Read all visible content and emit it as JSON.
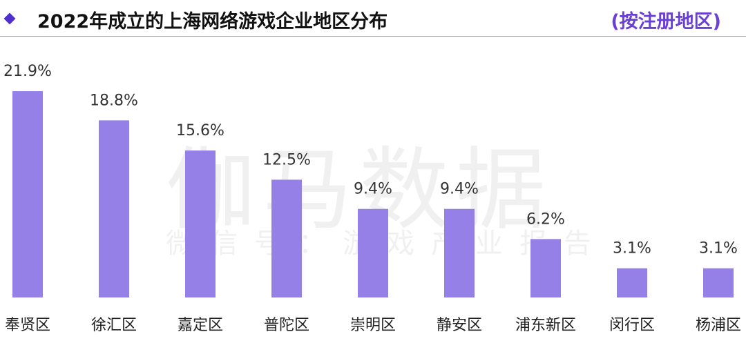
{
  "header": {
    "title": "2022年成立的上海网络游戏企业地区分布",
    "subtitle": "(按注册地区)"
  },
  "watermark": {
    "main": "伽马数据",
    "sub": "微信号：游戏产业报告"
  },
  "colors": {
    "bar": "#9580e8",
    "accent": "#4f2fd0"
  },
  "chart_data": {
    "type": "bar",
    "title": "2022年成立的上海网络游戏企业地区分布",
    "categories": [
      "奉贤区",
      "徐汇区",
      "嘉定区",
      "普陀区",
      "崇明区",
      "静安区",
      "浦东新区",
      "闵行区",
      "杨浦区"
    ],
    "values": [
      21.9,
      18.8,
      15.6,
      12.5,
      9.4,
      9.4,
      6.2,
      3.1,
      3.1
    ],
    "unit": "%",
    "xlabel": "",
    "ylabel": "",
    "grid": false
  }
}
